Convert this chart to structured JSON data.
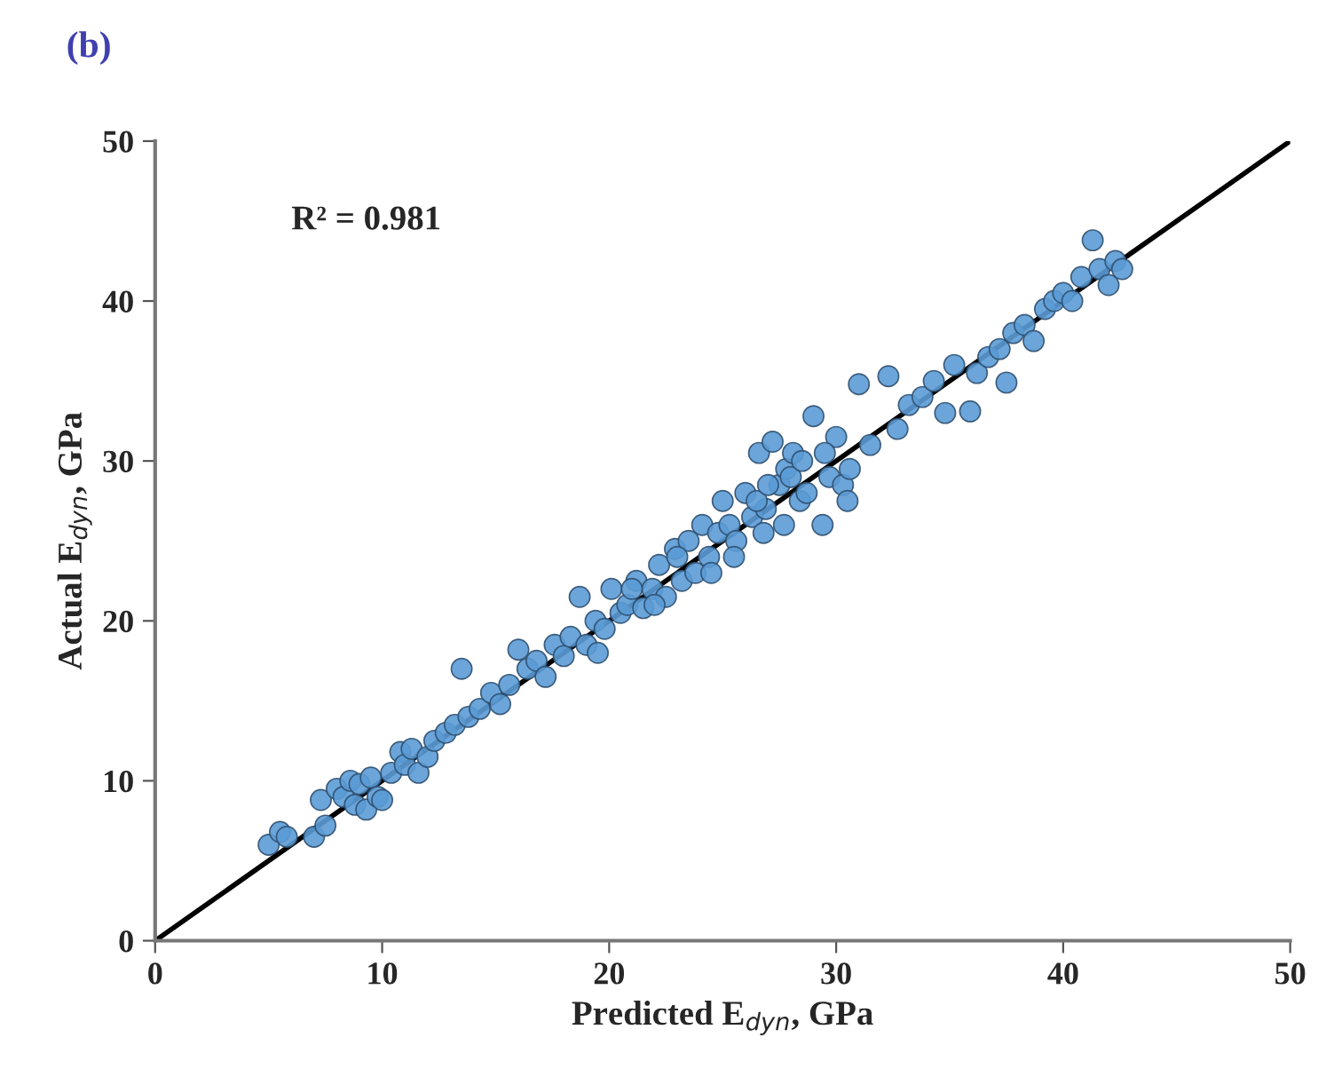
{
  "chart_data": {
    "type": "scatter",
    "title": "(b)",
    "xlabel": "Predicted E$_{dyn}$, GPa",
    "ylabel": "Actual E$_{dyn}$, GPa",
    "annotations": [
      "R² = 0.981"
    ],
    "xlim": [
      0,
      50
    ],
    "ylim": [
      0,
      50
    ],
    "xticks": [
      0,
      10,
      20,
      30,
      40,
      50
    ],
    "yticks": [
      0,
      10,
      20,
      30,
      40,
      50
    ],
    "grid": false,
    "marker": "circle",
    "series": [
      {
        "color": "#5b9bd5",
        "x": [
          5.0,
          5.5,
          5.8,
          7.0,
          7.3,
          7.5,
          8.0,
          8.3,
          8.6,
          8.8,
          9.0,
          9.3,
          9.5,
          9.8,
          10.0,
          10.4,
          10.8,
          11.0,
          11.3,
          11.6,
          12.0,
          12.3,
          12.8,
          13.2,
          13.5,
          13.8,
          14.3,
          14.8,
          15.2,
          15.6,
          16.0,
          16.4,
          16.8,
          17.2,
          17.6,
          18.0,
          18.3,
          18.7,
          19.0,
          19.4,
          19.8,
          20.1,
          20.5,
          20.8,
          21.2,
          21.5,
          21.9,
          22.2,
          22.5,
          22.9,
          23.2,
          23.5,
          23.8,
          24.1,
          24.4,
          24.8,
          25.0,
          25.3,
          25.6,
          26.0,
          26.3,
          26.6,
          26.9,
          27.2,
          27.5,
          27.8,
          28.1,
          28.4,
          28.7,
          29.0,
          29.4,
          29.7,
          30.0,
          30.3,
          30.6,
          31.0,
          31.5,
          32.3,
          32.7,
          33.2,
          33.8,
          34.3,
          34.8,
          35.2,
          35.9,
          36.2,
          36.7,
          37.2,
          37.5,
          37.8,
          38.3,
          38.7,
          39.2,
          39.6,
          40.0,
          40.4,
          40.8,
          41.3,
          41.6,
          42.0,
          42.3,
          42.6,
          24.5,
          25.5,
          26.5,
          27.0,
          28.0,
          28.5,
          29.5,
          30.5,
          21.0,
          22.0,
          23.0,
          19.5,
          26.8,
          27.7
        ],
        "values": [
          6.0,
          6.8,
          6.5,
          6.5,
          8.8,
          7.2,
          9.5,
          9.0,
          10.0,
          8.5,
          9.8,
          8.2,
          10.2,
          9.0,
          8.8,
          10.5,
          11.8,
          11.0,
          12.0,
          10.5,
          11.5,
          12.5,
          13.0,
          13.5,
          17.0,
          14.0,
          14.5,
          15.5,
          14.8,
          16.0,
          18.2,
          17.0,
          17.5,
          16.5,
          18.5,
          17.8,
          19.0,
          21.5,
          18.5,
          20.0,
          19.5,
          22.0,
          20.5,
          21.0,
          22.5,
          20.8,
          22.0,
          23.5,
          21.5,
          24.5,
          22.5,
          25.0,
          23.0,
          26.0,
          24.0,
          25.5,
          27.5,
          26.0,
          25.0,
          28.0,
          26.5,
          30.5,
          27.0,
          31.2,
          28.5,
          29.5,
          30.5,
          27.5,
          28.0,
          32.8,
          26.0,
          29.0,
          31.5,
          28.5,
          29.5,
          34.8,
          31.0,
          35.3,
          32.0,
          33.5,
          34.0,
          35.0,
          33.0,
          36.0,
          33.1,
          35.5,
          36.5,
          37.0,
          34.9,
          38.0,
          38.5,
          37.5,
          39.5,
          40.0,
          40.5,
          40.0,
          41.5,
          43.8,
          42.0,
          41.0,
          42.5,
          42.0,
          23.0,
          24.0,
          27.5,
          28.5,
          29.0,
          30.0,
          30.5,
          27.5,
          22.0,
          21.0,
          24.0,
          18.0,
          25.5,
          26.0
        ]
      },
      {
        "type": "line",
        "color": "#000000",
        "x": [
          0,
          50
        ],
        "values": [
          0,
          50
        ],
        "line_style": "solid",
        "marker": "none"
      }
    ]
  }
}
